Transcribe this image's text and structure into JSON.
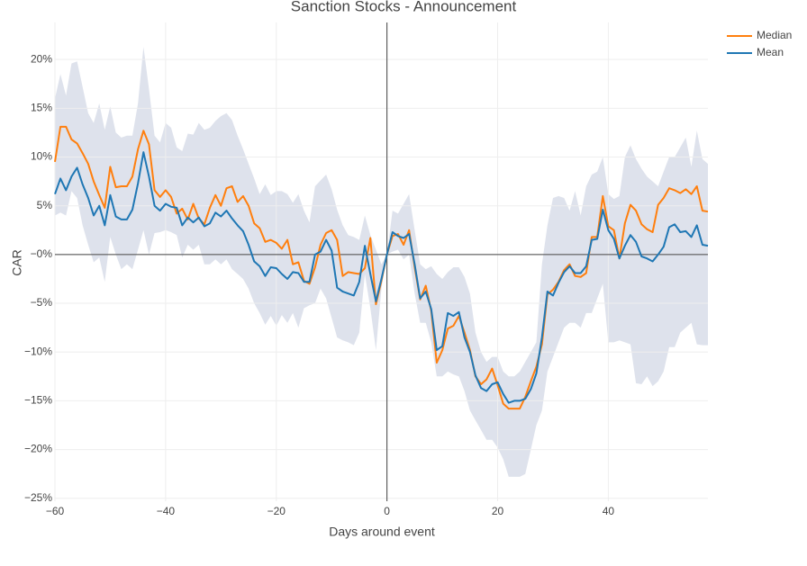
{
  "chart_data": {
    "type": "line",
    "title": "Sanction Stocks - Announcement",
    "x_label": "Days around event",
    "y_label": "CAR",
    "x": [
      -60,
      -59,
      -58,
      -57,
      -56,
      -55,
      -54,
      -53,
      -52,
      -51,
      -50,
      -49,
      -48,
      -47,
      -46,
      -45,
      -44,
      -43,
      -42,
      -41,
      -40,
      -39,
      -38,
      -37,
      -36,
      -35,
      -34,
      -33,
      -32,
      -31,
      -30,
      -29,
      -28,
      -27,
      -26,
      -25,
      -24,
      -23,
      -22,
      -21,
      -20,
      -19,
      -18,
      -17,
      -16,
      -15,
      -14,
      -13,
      -12,
      -11,
      -10,
      -9,
      -8,
      -7,
      -6,
      -5,
      -4,
      -3,
      -2,
      -1,
      0,
      1,
      2,
      3,
      4,
      5,
      6,
      7,
      8,
      9,
      10,
      11,
      12,
      13,
      14,
      15,
      16,
      17,
      18,
      19,
      20,
      21,
      22,
      23,
      24,
      25,
      26,
      27,
      28,
      29,
      30,
      31,
      32,
      33,
      34,
      35,
      36,
      37,
      38,
      39,
      40,
      41,
      42,
      43,
      44,
      45,
      46,
      47,
      48,
      49,
      50,
      51,
      52,
      53,
      54,
      55,
      56,
      57,
      58
    ],
    "series": [
      {
        "name": "Median",
        "color": "#ff7f0e",
        "values": [
          9.5,
          13.1,
          13.1,
          11.8,
          11.4,
          10.4,
          9.3,
          7.5,
          6.1,
          4.8,
          9.0,
          6.9,
          7.0,
          7.0,
          8.0,
          10.8,
          12.7,
          11.3,
          6.6,
          5.9,
          6.6,
          5.9,
          4.2,
          4.7,
          3.6,
          5.2,
          3.7,
          3.1,
          4.8,
          6.1,
          5.0,
          6.8,
          7.0,
          5.4,
          6.0,
          5.0,
          3.2,
          2.7,
          1.3,
          1.5,
          1.2,
          0.6,
          1.5,
          -1.0,
          -0.8,
          -2.7,
          -3.0,
          -1.3,
          1.0,
          2.2,
          2.5,
          1.5,
          -2.2,
          -1.8,
          -1.9,
          -2.0,
          -1.4,
          1.7,
          -5.1,
          -2.7,
          0.0,
          1.9,
          2.1,
          1.0,
          2.5,
          -1.3,
          -4.6,
          -3.2,
          -5.8,
          -11.1,
          -9.8,
          -7.6,
          -7.3,
          -6.3,
          -8.0,
          -9.8,
          -12.5,
          -13.3,
          -12.8,
          -11.7,
          -13.4,
          -15.3,
          -15.8,
          -15.8,
          -15.8,
          -14.6,
          -13.0,
          -11.5,
          -9.2,
          -4.1,
          -3.6,
          -2.8,
          -1.6,
          -1.0,
          -2.2,
          -2.3,
          -1.9,
          1.8,
          1.8,
          6.0,
          2.9,
          2.5,
          -0.4,
          3.2,
          5.1,
          4.5,
          3.1,
          2.6,
          2.3,
          5.1,
          5.8,
          6.8,
          6.6,
          6.3,
          6.7,
          6.2,
          7.0,
          4.5,
          4.4
        ]
      },
      {
        "name": "Mean",
        "color": "#1f77b4",
        "values": [
          6.2,
          7.8,
          6.6,
          8.0,
          8.9,
          7.2,
          5.8,
          4.0,
          5.0,
          3.0,
          6.1,
          3.9,
          3.6,
          3.6,
          4.6,
          7.3,
          10.5,
          8.0,
          5.0,
          4.5,
          5.2,
          4.9,
          4.8,
          3.0,
          3.8,
          3.3,
          3.8,
          2.9,
          3.2,
          4.3,
          3.9,
          4.5,
          3.7,
          3.0,
          2.4,
          1.0,
          -0.7,
          -1.2,
          -2.2,
          -1.3,
          -1.4,
          -2.0,
          -2.5,
          -1.8,
          -1.9,
          -2.8,
          -2.8,
          0.0,
          0.3,
          1.5,
          0.4,
          -3.4,
          -3.8,
          -4.0,
          -4.2,
          -2.8,
          0.9,
          -2.0,
          -4.8,
          -2.5,
          0.0,
          2.3,
          1.9,
          1.7,
          2.1,
          -1.0,
          -4.5,
          -3.8,
          -5.6,
          -9.8,
          -9.4,
          -6.0,
          -6.3,
          -5.9,
          -8.5,
          -10.0,
          -12.4,
          -13.7,
          -14.0,
          -13.3,
          -13.1,
          -14.3,
          -15.2,
          -15.0,
          -15.0,
          -14.8,
          -13.8,
          -12.2,
          -8.5,
          -3.8,
          -4.2,
          -2.9,
          -1.8,
          -1.2,
          -1.9,
          -1.9,
          -1.2,
          1.5,
          1.6,
          4.6,
          2.5,
          1.6,
          -0.4,
          0.9,
          2.0,
          1.3,
          -0.2,
          -0.4,
          -0.7,
          0.0,
          0.8,
          2.8,
          3.1,
          2.3,
          2.4,
          1.8,
          3.0,
          1.0,
          0.9
        ]
      }
    ],
    "band": {
      "color": "rgba(90,110,160,0.2)",
      "upper": [
        16.0,
        18.5,
        16.3,
        19.6,
        19.8,
        17.2,
        14.5,
        13.5,
        15.5,
        12.8,
        15.2,
        12.5,
        12.0,
        12.2,
        12.2,
        15.5,
        21.3,
        17.0,
        12.2,
        11.5,
        13.5,
        13.0,
        11.0,
        10.6,
        12.4,
        12.3,
        13.5,
        12.8,
        13.0,
        13.7,
        14.2,
        14.5,
        13.8,
        12.2,
        10.8,
        9.3,
        7.8,
        6.2,
        7.2,
        6.1,
        6.5,
        6.5,
        6.2,
        5.3,
        6.2,
        4.5,
        3.3,
        7.0,
        7.6,
        8.2,
        6.7,
        4.6,
        3.0,
        2.0,
        1.8,
        1.5,
        4.0,
        2.0,
        0.5,
        -1.0,
        0.0,
        4.5,
        4.2,
        5.2,
        6.2,
        2.5,
        -1.0,
        -1.5,
        -1.2,
        -2.0,
        -2.5,
        -1.8,
        -1.3,
        -1.3,
        -2.3,
        -4.0,
        -8.0,
        -10.0,
        -11.0,
        -10.5,
        -10.5,
        -12.0,
        -12.5,
        -12.5,
        -12.0,
        -11.0,
        -10.0,
        -9.0,
        -1.0,
        3.0,
        5.8,
        6.0,
        5.8,
        4.5,
        6.5,
        4.0,
        7.0,
        8.2,
        8.5,
        10.0,
        6.2,
        5.7,
        6.0,
        10.0,
        11.2,
        9.8,
        8.8,
        8.0,
        7.5,
        7.0,
        8.5,
        10.0,
        10.0,
        11.0,
        12.0,
        9.0,
        12.7,
        9.8,
        9.3
      ],
      "lower": [
        4.0,
        4.3,
        4.0,
        6.5,
        5.8,
        3.0,
        1.0,
        -0.8,
        -0.3,
        -2.8,
        1.8,
        0.0,
        -1.5,
        -1.0,
        -1.5,
        0.5,
        2.5,
        0.0,
        2.2,
        2.3,
        2.5,
        2.3,
        2.0,
        -0.3,
        1.0,
        0.5,
        1.0,
        -1.0,
        -1.0,
        -0.5,
        -1.0,
        -0.5,
        -1.5,
        -2.0,
        -2.5,
        -3.5,
        -5.0,
        -6.0,
        -7.2,
        -6.3,
        -7.3,
        -6.2,
        -7.0,
        -6.0,
        -7.5,
        -5.5,
        -5.2,
        -5.0,
        -3.5,
        -4.5,
        -6.5,
        -8.5,
        -8.8,
        -9.0,
        -9.3,
        -8.0,
        -2.0,
        -5.5,
        -9.8,
        -3.5,
        0.0,
        0.3,
        0.5,
        -0.5,
        0.0,
        -4.0,
        -7.0,
        -7.0,
        -9.0,
        -12.5,
        -12.5,
        -12.0,
        -12.3,
        -12.5,
        -14.0,
        -16.0,
        -17.0,
        -18.0,
        -19.0,
        -19.0,
        -19.8,
        -21.0,
        -22.8,
        -22.8,
        -22.8,
        -22.5,
        -20.0,
        -17.5,
        -16.0,
        -12.0,
        -10.5,
        -9.0,
        -7.5,
        -7.0,
        -7.0,
        -7.5,
        -6.0,
        -6.0,
        -4.5,
        -3.0,
        -9.0,
        -9.0,
        -8.8,
        -9.0,
        -9.2,
        -13.2,
        -13.3,
        -12.5,
        -13.5,
        -13.0,
        -12.0,
        -9.5,
        -9.5,
        -8.0,
        -7.5,
        -7.0,
        -9.2,
        -9.3,
        -9.3
      ]
    },
    "xlim": [
      -60,
      58
    ],
    "ylim": [
      -25.3,
      23.8
    ],
    "xticks": [
      {
        "value": -60,
        "label": "−60"
      },
      {
        "value": -40,
        "label": "−40"
      },
      {
        "value": -20,
        "label": "−20"
      },
      0,
      20,
      40
    ],
    "yticks": [
      {
        "value": 20,
        "label": "20%"
      },
      {
        "value": 15,
        "label": "15%"
      },
      {
        "value": 10,
        "label": "10%"
      },
      {
        "value": 5,
        "label": "5%"
      },
      {
        "value": 0,
        "label": "−0%"
      },
      {
        "value": -5,
        "label": "−5%"
      },
      {
        "value": -10,
        "label": "−10%"
      },
      {
        "value": -15,
        "label": "−15%"
      },
      {
        "value": -20,
        "label": "−20%"
      },
      {
        "value": -25,
        "label": "−25%"
      }
    ],
    "grid": true,
    "zeroline": true,
    "legend": "top-right"
  }
}
